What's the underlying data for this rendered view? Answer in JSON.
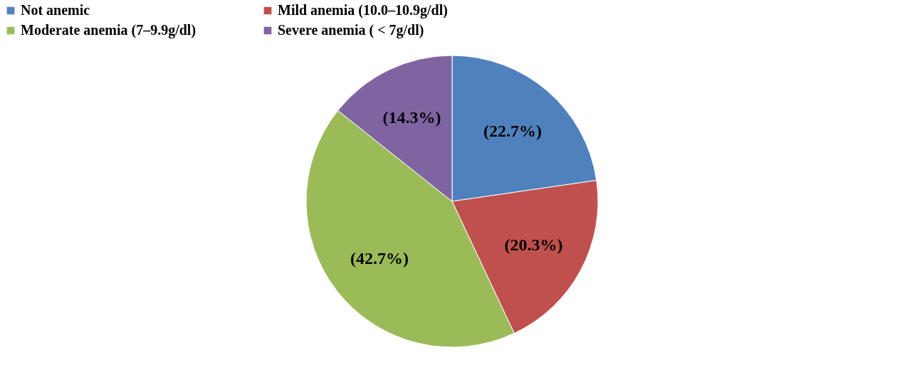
{
  "chart_data": {
    "type": "pie",
    "categories": [
      "Not anemic",
      "Mild anemia (10.0–10.9g/dl)",
      "Moderate anemia (7–9.9g/dl)",
      "Severe anemia ( < 7g/dl)"
    ],
    "values": [
      22.7,
      20.3,
      42.7,
      14.3
    ],
    "colors": [
      "#4f81bd",
      "#c0504d",
      "#9bbb59",
      "#8064a2"
    ],
    "value_labels": [
      "(22.7%)",
      "(20.3%)",
      "(42.7%)",
      "(14.3%)"
    ],
    "legend": "top"
  }
}
